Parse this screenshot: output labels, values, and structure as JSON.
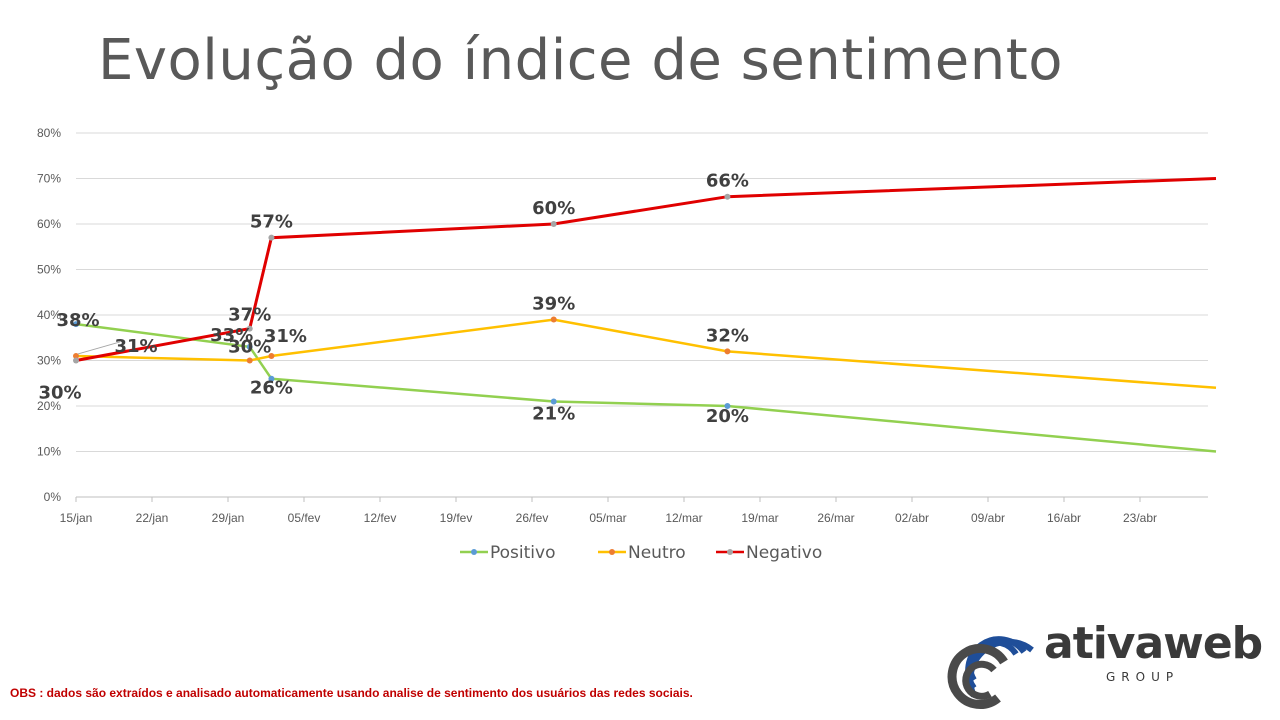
{
  "slide": {
    "title": "Evolução do índice de sentimento",
    "note": "OBS : dados são extraídos e analisado automaticamente usando analise de sentimento dos usuários das redes sociais."
  },
  "logo": {
    "word": "ativaweb",
    "sub": "GROUP",
    "colors": {
      "blue": "#1f4e99",
      "gray": "#4a4a4a"
    }
  },
  "chart_data": {
    "type": "line",
    "x_axis": {
      "type": "date",
      "ticks": [
        "15/jan",
        "22/jan",
        "29/jan",
        "05/fev",
        "12/fev",
        "19/fev",
        "26/fev",
        "05/mar",
        "12/mar",
        "19/mar",
        "26/mar",
        "02/abr",
        "09/abr",
        "16/abr",
        "23/abr"
      ]
    },
    "y_axis": {
      "min": 0,
      "max": 0.8,
      "ticks": [
        "0%",
        "10%",
        "20%",
        "30%",
        "40%",
        "50%",
        "60%",
        "70%",
        "80%"
      ]
    },
    "grid": true,
    "legend_position": "bottom",
    "series": [
      {
        "name": "Positivo",
        "line_color": "#92d050",
        "marker_color": "#5b9bd5",
        "points": [
          {
            "x": "15/jan",
            "y": 0.38,
            "label": "38%"
          },
          {
            "x": "31/jan",
            "y": 0.33,
            "label": "33%"
          },
          {
            "x": "02/fev",
            "y": 0.26,
            "label": "26%"
          },
          {
            "x": "28/fev",
            "y": 0.21,
            "label": "21%"
          },
          {
            "x": "16/mar",
            "y": 0.2,
            "label": "20%"
          },
          {
            "x": "30/abr",
            "y": 0.1,
            "label": ""
          }
        ]
      },
      {
        "name": "Neutro",
        "line_color": "#ffc000",
        "marker_color": "#ed7d31",
        "points": [
          {
            "x": "15/jan",
            "y": 0.31,
            "label": "31%"
          },
          {
            "x": "31/jan",
            "y": 0.3,
            "label": "30%"
          },
          {
            "x": "02/fev",
            "y": 0.31,
            "label": "31%"
          },
          {
            "x": "28/fev",
            "y": 0.39,
            "label": "39%"
          },
          {
            "x": "16/mar",
            "y": 0.32,
            "label": "32%"
          },
          {
            "x": "30/abr",
            "y": 0.24,
            "label": ""
          }
        ]
      },
      {
        "name": "Negativo",
        "line_color": "#e00000",
        "marker_color": "#a5a5a5",
        "points": [
          {
            "x": "15/jan",
            "y": 0.3,
            "label": "30%"
          },
          {
            "x": "31/jan",
            "y": 0.37,
            "label": "37%"
          },
          {
            "x": "02/fev",
            "y": 0.57,
            "label": "57%"
          },
          {
            "x": "28/fev",
            "y": 0.6,
            "label": "60%"
          },
          {
            "x": "16/mar",
            "y": 0.66,
            "label": "66%"
          },
          {
            "x": "30/abr",
            "y": 0.7,
            "label": ""
          }
        ]
      }
    ]
  }
}
